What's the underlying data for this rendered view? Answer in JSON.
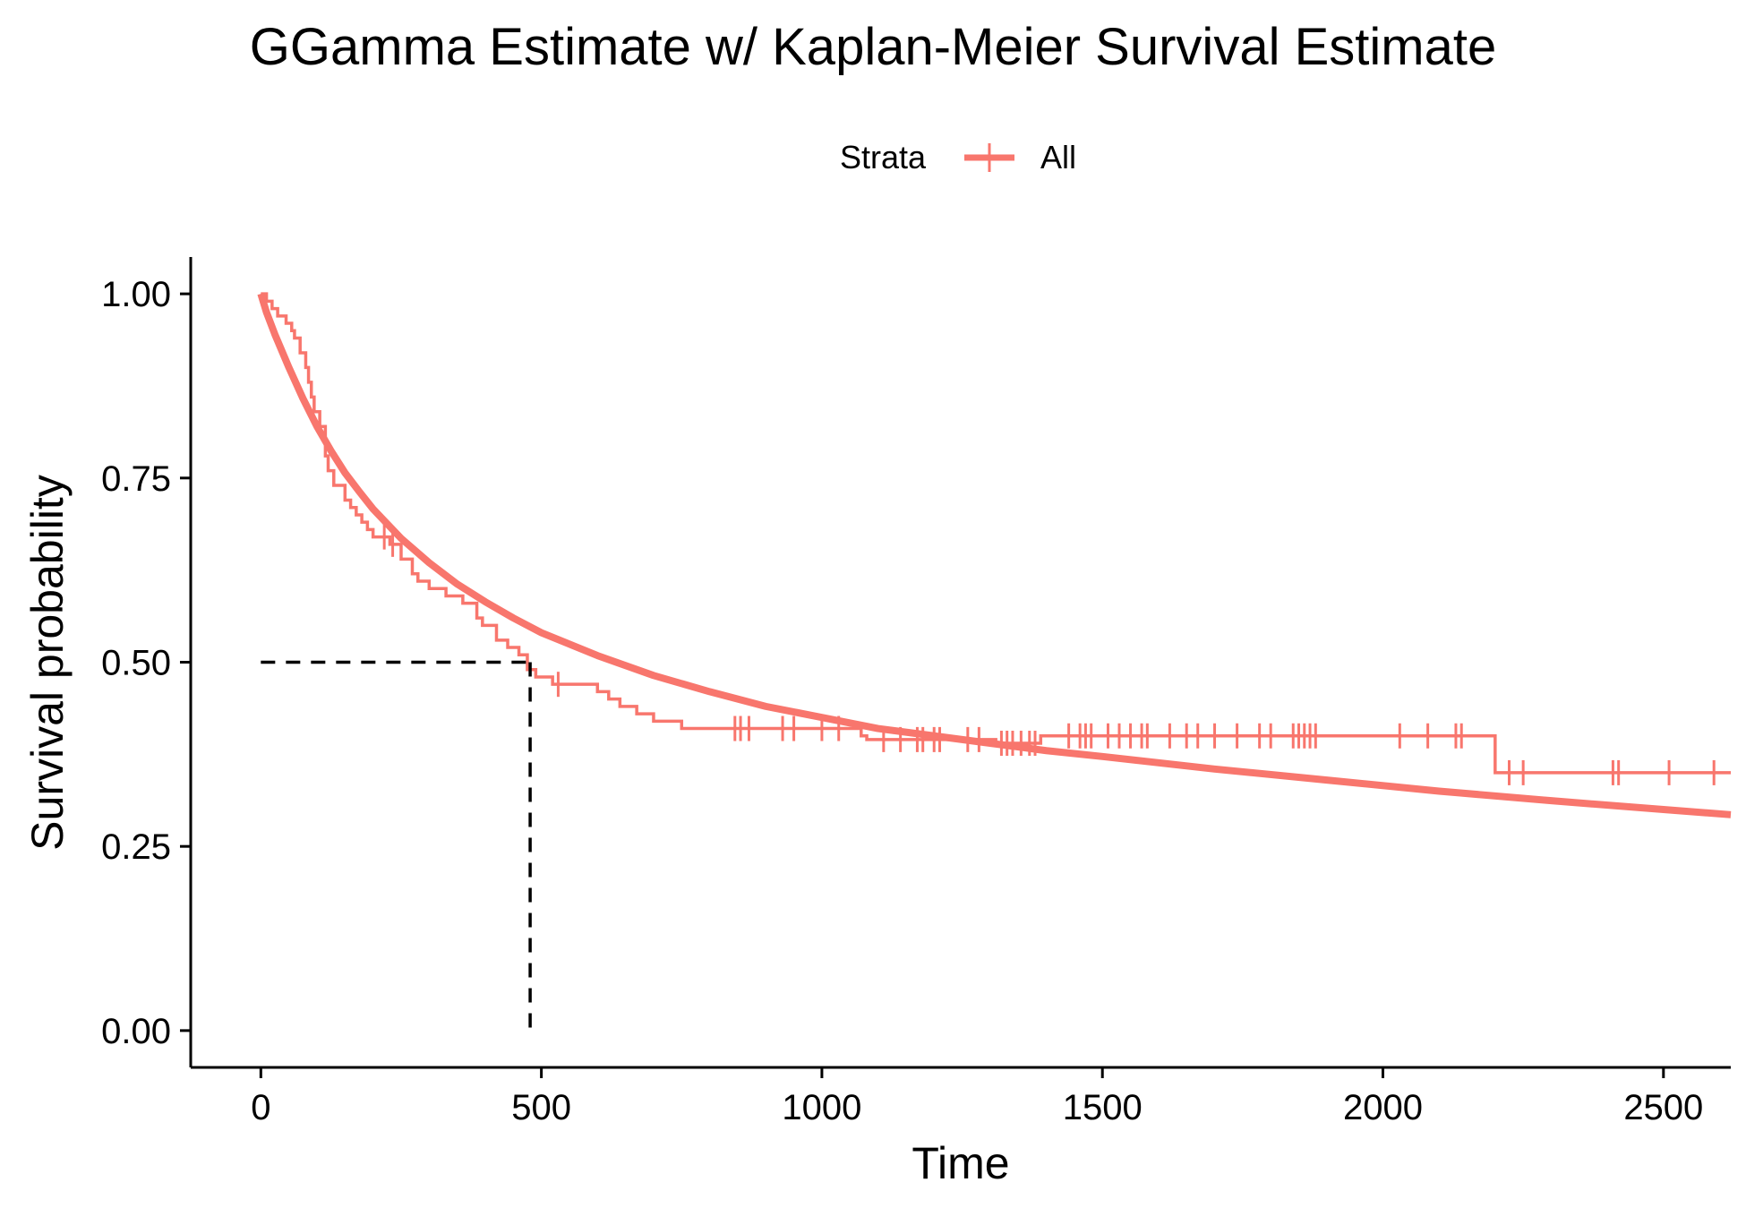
{
  "chart_data": {
    "type": "line",
    "title": "GGamma Estimate w/ Kaplan-Meier Survival Estimate",
    "xlabel": "Time",
    "ylabel": "Survival probability",
    "xlim": [
      -125,
      2620
    ],
    "ylim": [
      -0.05,
      1.05
    ],
    "x_ticks": [
      0,
      500,
      1000,
      1500,
      2000,
      2500
    ],
    "x_tick_labels": [
      "0",
      "500",
      "1000",
      "1500",
      "2000",
      "2500"
    ],
    "y_ticks": [
      0,
      0.25,
      0.5,
      0.75,
      1.0
    ],
    "y_tick_labels": [
      "0.00",
      "0.25",
      "0.50",
      "0.75",
      "1.00"
    ],
    "grid": false,
    "legend": {
      "placement": "top",
      "title": "Strata",
      "entries": [
        "All"
      ]
    },
    "series_color": "#F8766D",
    "median_survival": {
      "time": 480,
      "probability": 0.5,
      "style": "dashed",
      "color": "#000000"
    },
    "series": [
      {
        "name": "All",
        "kind": "kaplan-meier-step",
        "steps": [
          [
            0,
            1.0
          ],
          [
            10,
            0.99
          ],
          [
            20,
            0.98
          ],
          [
            30,
            0.97
          ],
          [
            45,
            0.96
          ],
          [
            55,
            0.95
          ],
          [
            60,
            0.94
          ],
          [
            70,
            0.92
          ],
          [
            80,
            0.9
          ],
          [
            85,
            0.88
          ],
          [
            90,
            0.86
          ],
          [
            95,
            0.84
          ],
          [
            105,
            0.82
          ],
          [
            115,
            0.78
          ],
          [
            120,
            0.76
          ],
          [
            130,
            0.74
          ],
          [
            145,
            0.74
          ],
          [
            150,
            0.72
          ],
          [
            160,
            0.71
          ],
          [
            170,
            0.7
          ],
          [
            180,
            0.69
          ],
          [
            190,
            0.68
          ],
          [
            200,
            0.67
          ],
          [
            230,
            0.66
          ],
          [
            250,
            0.64
          ],
          [
            270,
            0.62
          ],
          [
            280,
            0.61
          ],
          [
            300,
            0.6
          ],
          [
            330,
            0.59
          ],
          [
            360,
            0.58
          ],
          [
            385,
            0.56
          ],
          [
            395,
            0.55
          ],
          [
            420,
            0.53
          ],
          [
            440,
            0.52
          ],
          [
            460,
            0.51
          ],
          [
            475,
            0.49
          ],
          [
            490,
            0.48
          ],
          [
            520,
            0.47
          ],
          [
            600,
            0.46
          ],
          [
            620,
            0.45
          ],
          [
            640,
            0.44
          ],
          [
            670,
            0.43
          ],
          [
            700,
            0.42
          ],
          [
            750,
            0.41
          ],
          [
            1070,
            0.4
          ],
          [
            1080,
            0.395
          ],
          [
            1310,
            0.39
          ],
          [
            1390,
            0.4
          ],
          [
            2200,
            0.35
          ],
          [
            2620,
            0.35
          ]
        ],
        "censor_times": [
          220,
          235,
          530,
          845,
          855,
          870,
          930,
          950,
          1000,
          1030,
          1110,
          1140,
          1170,
          1180,
          1200,
          1210,
          1260,
          1280,
          1320,
          1330,
          1340,
          1355,
          1370,
          1380,
          1440,
          1460,
          1470,
          1480,
          1510,
          1530,
          1550,
          1570,
          1580,
          1620,
          1650,
          1670,
          1700,
          1740,
          1780,
          1800,
          1840,
          1850,
          1860,
          1870,
          1880,
          2030,
          2080,
          2130,
          2140,
          2225,
          2250,
          2410,
          2420,
          2510,
          2590
        ]
      },
      {
        "name": "",
        "kind": "ggamma-estimate",
        "points": [
          [
            0,
            1.0
          ],
          [
            10,
            0.975
          ],
          [
            25,
            0.945
          ],
          [
            50,
            0.9
          ],
          [
            75,
            0.858
          ],
          [
            100,
            0.82
          ],
          [
            125,
            0.787
          ],
          [
            150,
            0.757
          ],
          [
            175,
            0.732
          ],
          [
            200,
            0.708
          ],
          [
            250,
            0.668
          ],
          [
            300,
            0.635
          ],
          [
            350,
            0.606
          ],
          [
            400,
            0.582
          ],
          [
            450,
            0.56
          ],
          [
            500,
            0.54
          ],
          [
            600,
            0.509
          ],
          [
            700,
            0.482
          ],
          [
            800,
            0.46
          ],
          [
            900,
            0.44
          ],
          [
            1000,
            0.425
          ],
          [
            1100,
            0.41
          ],
          [
            1200,
            0.4
          ],
          [
            1300,
            0.39
          ],
          [
            1400,
            0.38
          ],
          [
            1500,
            0.372
          ],
          [
            1700,
            0.355
          ],
          [
            1900,
            0.34
          ],
          [
            2100,
            0.325
          ],
          [
            2300,
            0.312
          ],
          [
            2500,
            0.3
          ],
          [
            2620,
            0.293
          ]
        ]
      }
    ]
  }
}
